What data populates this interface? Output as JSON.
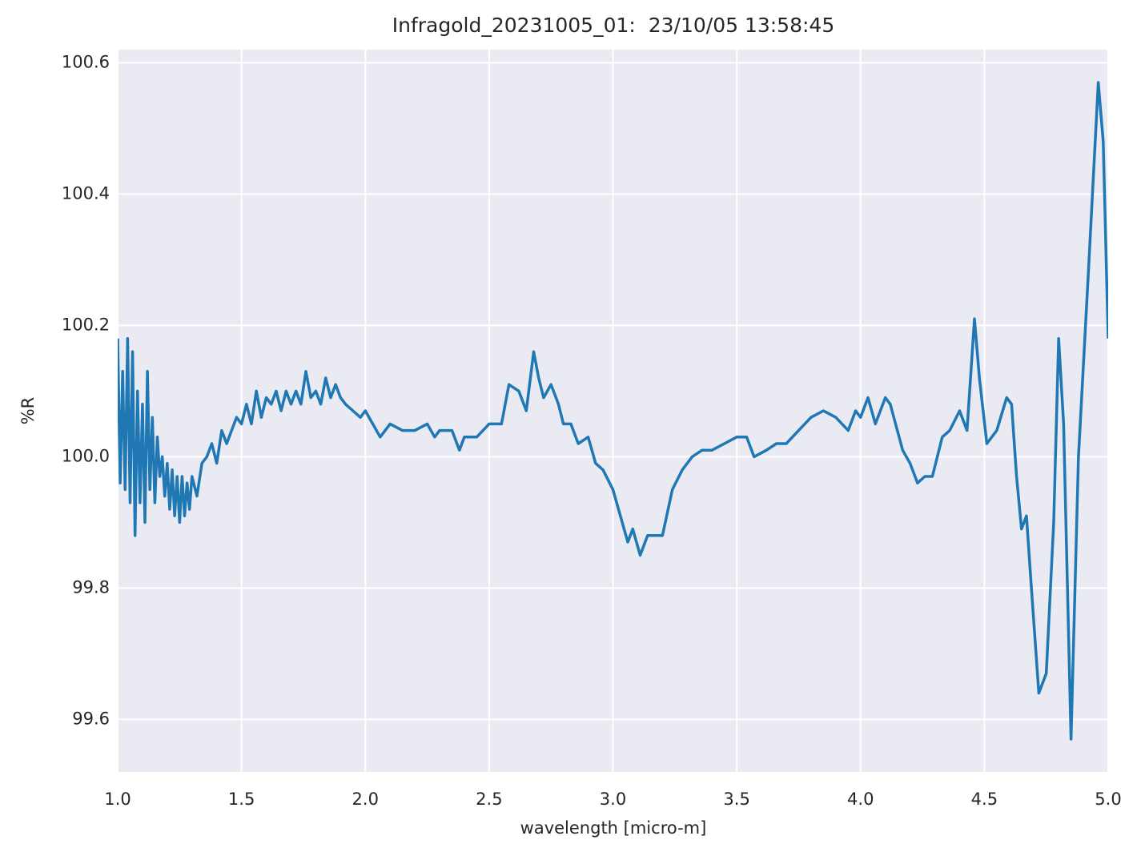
{
  "chart_data": {
    "type": "line",
    "title": "Infragold_20231005_01:  23/10/05 13:58:45",
    "x_label": "wavelength [micro-m]",
    "y_label": "%R",
    "xlim": [
      1.0,
      5.0
    ],
    "ylim": [
      99.52,
      100.62
    ],
    "xticks": [
      {
        "value": 1.0,
        "label": "1.0"
      },
      1.5,
      {
        "value": 2.0,
        "label": "2.0"
      },
      2.5,
      {
        "value": 3.0,
        "label": "3.0"
      },
      3.5,
      {
        "value": 4.0,
        "label": "4.0"
      },
      4.5,
      {
        "value": 5.0,
        "label": "5.0"
      }
    ],
    "yticks": [
      99.6,
      99.8,
      {
        "value": 100.0,
        "label": "100.0"
      },
      100.2,
      100.4,
      100.6
    ],
    "grid": true,
    "x": [
      1.0,
      1.01,
      1.02,
      1.03,
      1.04,
      1.05,
      1.06,
      1.07,
      1.08,
      1.09,
      1.1,
      1.11,
      1.12,
      1.13,
      1.14,
      1.15,
      1.16,
      1.17,
      1.18,
      1.19,
      1.2,
      1.21,
      1.22,
      1.23,
      1.24,
      1.25,
      1.26,
      1.27,
      1.28,
      1.29,
      1.3,
      1.32,
      1.34,
      1.36,
      1.38,
      1.4,
      1.42,
      1.44,
      1.46,
      1.48,
      1.5,
      1.52,
      1.54,
      1.56,
      1.58,
      1.6,
      1.62,
      1.64,
      1.66,
      1.68,
      1.7,
      1.72,
      1.74,
      1.76,
      1.78,
      1.8,
      1.82,
      1.84,
      1.86,
      1.88,
      1.9,
      1.92,
      1.95,
      1.98,
      2.0,
      2.03,
      2.06,
      2.1,
      2.15,
      2.2,
      2.25,
      2.28,
      2.3,
      2.35,
      2.38,
      2.4,
      2.45,
      2.5,
      2.55,
      2.58,
      2.62,
      2.65,
      2.68,
      2.7,
      2.72,
      2.75,
      2.78,
      2.8,
      2.83,
      2.86,
      2.9,
      2.93,
      2.96,
      3.0,
      3.03,
      3.06,
      3.08,
      3.11,
      3.14,
      3.18,
      3.2,
      3.24,
      3.28,
      3.32,
      3.36,
      3.4,
      3.45,
      3.5,
      3.54,
      3.57,
      3.62,
      3.66,
      3.7,
      3.75,
      3.8,
      3.85,
      3.9,
      3.95,
      3.98,
      4.0,
      4.03,
      4.06,
      4.1,
      4.12,
      4.17,
      4.2,
      4.23,
      4.26,
      4.29,
      4.33,
      4.36,
      4.4,
      4.43,
      4.46,
      4.48,
      4.51,
      4.55,
      4.59,
      4.61,
      4.63,
      4.65,
      4.67,
      4.69,
      4.72,
      4.75,
      4.78,
      4.8,
      4.82,
      4.85,
      4.88,
      4.92,
      4.96,
      4.98,
      5.0
    ],
    "series": [
      {
        "name": "%R",
        "color": "#1f77b4",
        "values": [
          100.18,
          99.96,
          100.13,
          99.95,
          100.18,
          99.93,
          100.16,
          99.88,
          100.1,
          99.93,
          100.08,
          99.9,
          100.13,
          99.95,
          100.06,
          99.93,
          100.03,
          99.97,
          100.0,
          99.94,
          99.99,
          99.92,
          99.98,
          99.91,
          99.97,
          99.9,
          99.97,
          99.91,
          99.96,
          99.92,
          99.97,
          99.94,
          99.99,
          100.0,
          100.02,
          99.99,
          100.04,
          100.02,
          100.04,
          100.06,
          100.05,
          100.08,
          100.05,
          100.1,
          100.06,
          100.09,
          100.08,
          100.1,
          100.07,
          100.1,
          100.08,
          100.1,
          100.08,
          100.13,
          100.09,
          100.1,
          100.08,
          100.12,
          100.09,
          100.11,
          100.09,
          100.08,
          100.07,
          100.06,
          100.07,
          100.05,
          100.03,
          100.05,
          100.04,
          100.04,
          100.05,
          100.03,
          100.04,
          100.04,
          100.01,
          100.03,
          100.03,
          100.05,
          100.05,
          100.11,
          100.1,
          100.07,
          100.16,
          100.12,
          100.09,
          100.11,
          100.08,
          100.05,
          100.05,
          100.02,
          100.03,
          99.99,
          99.98,
          99.95,
          99.91,
          99.87,
          99.89,
          99.85,
          99.88,
          99.88,
          99.88,
          99.95,
          99.98,
          100.0,
          100.01,
          100.01,
          100.02,
          100.03,
          100.03,
          100.0,
          100.01,
          100.02,
          100.02,
          100.04,
          100.06,
          100.07,
          100.06,
          100.04,
          100.07,
          100.06,
          100.09,
          100.05,
          100.09,
          100.08,
          100.01,
          99.99,
          99.96,
          99.97,
          99.97,
          100.03,
          100.04,
          100.07,
          100.04,
          100.21,
          100.12,
          100.02,
          100.04,
          100.09,
          100.08,
          99.97,
          99.89,
          99.91,
          99.8,
          99.64,
          99.67,
          99.9,
          100.18,
          100.05,
          99.57,
          100.0,
          100.28,
          100.57,
          100.48,
          100.18
        ]
      }
    ]
  }
}
